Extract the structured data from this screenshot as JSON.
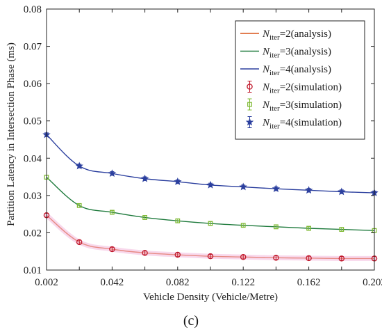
{
  "chart_data": {
    "type": "line",
    "panel_label": "(c)",
    "xlabel": "Vehicle Density (Vehicle/Metre)",
    "ylabel": "Partition Latency in Intersection Phase (ms)",
    "xlim": [
      0.002,
      0.202
    ],
    "ylim": [
      0.01,
      0.08
    ],
    "xticks": [
      "0.002",
      "0.042",
      "0.082",
      "0.122",
      "0.162",
      "0.202"
    ],
    "yticks": [
      "0.01",
      "0.02",
      "0.03",
      "0.04",
      "0.05",
      "0.06",
      "0.07",
      "0.08"
    ],
    "grid": false,
    "legend_position": "top-right",
    "x": [
      0.002,
      0.022,
      0.042,
      0.062,
      0.082,
      0.102,
      0.122,
      0.142,
      0.162,
      0.182,
      0.202
    ],
    "series": [
      {
        "name": "N_iter=2(analysis)",
        "legend_main": "N",
        "legend_sub": "iter",
        "legend_rest": "=2(analysis)",
        "kind": "analysis",
        "color": "#d95319",
        "values": [
          0.0247,
          0.0175,
          0.0156,
          0.0146,
          0.0141,
          0.0137,
          0.0135,
          0.0133,
          0.0132,
          0.0131,
          0.0131
        ]
      },
      {
        "name": "N_iter=3(analysis)",
        "legend_main": "N",
        "legend_sub": "iter",
        "legend_rest": "=3(analysis)",
        "kind": "analysis",
        "color": "#1e7a3c",
        "values": [
          0.0349,
          0.0273,
          0.0255,
          0.0241,
          0.0232,
          0.0225,
          0.022,
          0.0216,
          0.0212,
          0.0209,
          0.0206
        ]
      },
      {
        "name": "N_iter=4(analysis)",
        "legend_main": "N",
        "legend_sub": "iter",
        "legend_rest": "=4(analysis)",
        "kind": "analysis",
        "color": "#2b3f9e",
        "values": [
          0.0463,
          0.0379,
          0.0359,
          0.0345,
          0.0337,
          0.0328,
          0.0323,
          0.0318,
          0.0314,
          0.031,
          0.0307
        ]
      },
      {
        "name": "N_iter=2(simulation)",
        "legend_main": "N",
        "legend_sub": "iter",
        "legend_rest": "=2(simulation)",
        "kind": "simulation",
        "marker": "circle",
        "color": "#c0182b",
        "values": [
          0.0247,
          0.0175,
          0.0156,
          0.0146,
          0.0141,
          0.0137,
          0.0135,
          0.0133,
          0.0132,
          0.0131,
          0.0131
        ],
        "error": 0.0005
      },
      {
        "name": "N_iter=3(simulation)",
        "legend_main": "N",
        "legend_sub": "iter",
        "legend_rest": "=3(simulation)",
        "kind": "simulation",
        "marker": "square",
        "color": "#7cb82f",
        "values": [
          0.0349,
          0.0273,
          0.0255,
          0.0241,
          0.0232,
          0.0225,
          0.022,
          0.0216,
          0.0212,
          0.0209,
          0.0206
        ],
        "error": 0.0005
      },
      {
        "name": "N_iter=4(simulation)",
        "legend_main": "N",
        "legend_sub": "iter",
        "legend_rest": "=4(simulation)",
        "kind": "simulation",
        "marker": "star",
        "color": "#2b3f9e",
        "values": [
          0.0463,
          0.0379,
          0.0359,
          0.0345,
          0.0337,
          0.0328,
          0.0323,
          0.0318,
          0.0314,
          0.031,
          0.0307
        ],
        "error": 0.0005
      }
    ]
  }
}
